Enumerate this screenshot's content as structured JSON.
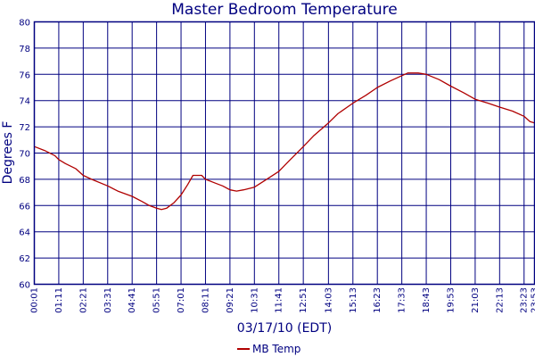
{
  "colors": {
    "series": "#b00000",
    "text": "#000080",
    "grid": "#000080",
    "background": "#ffffff"
  },
  "chart_data": {
    "type": "line",
    "title": "Master Bedroom Temperature",
    "xlabel": "03/17/10 (EDT)",
    "ylabel": "Degrees F",
    "ylim": [
      60,
      80
    ],
    "yticks": [
      60,
      62,
      64,
      66,
      68,
      70,
      72,
      74,
      76,
      78,
      80
    ],
    "x_tick_labels": [
      "00:01",
      "01:11",
      "02:21",
      "03:31",
      "04:41",
      "05:51",
      "07:01",
      "08:11",
      "09:21",
      "10:31",
      "11:41",
      "12:51",
      "14:03",
      "15:13",
      "16:23",
      "17:33",
      "18:43",
      "19:53",
      "21:03",
      "22:13",
      "23:23",
      "23:53"
    ],
    "grid": true,
    "legend_position": "bottom-center",
    "series": [
      {
        "name": "MB Temp",
        "time": [
          "00:01",
          "00:30",
          "01:00",
          "01:11",
          "01:30",
          "02:00",
          "02:21",
          "02:45",
          "03:31",
          "04:00",
          "04:41",
          "05:10",
          "05:30",
          "05:51",
          "06:05",
          "06:20",
          "06:40",
          "07:01",
          "07:20",
          "07:35",
          "08:00",
          "08:11",
          "08:40",
          "09:00",
          "09:21",
          "09:40",
          "10:00",
          "10:31",
          "11:00",
          "11:41",
          "12:10",
          "12:51",
          "13:20",
          "14:03",
          "14:30",
          "15:13",
          "15:50",
          "16:23",
          "17:00",
          "17:33",
          "17:50",
          "18:20",
          "18:43",
          "19:20",
          "19:53",
          "20:30",
          "21:03",
          "21:40",
          "22:13",
          "22:50",
          "23:23",
          "23:40",
          "23:53"
        ],
        "y": [
          70.5,
          70.2,
          69.8,
          69.5,
          69.2,
          68.8,
          68.3,
          68.0,
          67.5,
          67.1,
          66.7,
          66.3,
          66.0,
          65.8,
          65.7,
          65.8,
          66.2,
          66.8,
          67.6,
          68.3,
          68.3,
          68.0,
          67.7,
          67.5,
          67.2,
          67.1,
          67.2,
          67.4,
          67.9,
          68.6,
          69.4,
          70.5,
          71.3,
          72.3,
          73.0,
          73.8,
          74.4,
          75.0,
          75.5,
          75.9,
          76.1,
          76.1,
          76.0,
          75.6,
          75.1,
          74.6,
          74.1,
          73.8,
          73.5,
          73.2,
          72.8,
          72.4,
          72.3
        ]
      }
    ]
  }
}
